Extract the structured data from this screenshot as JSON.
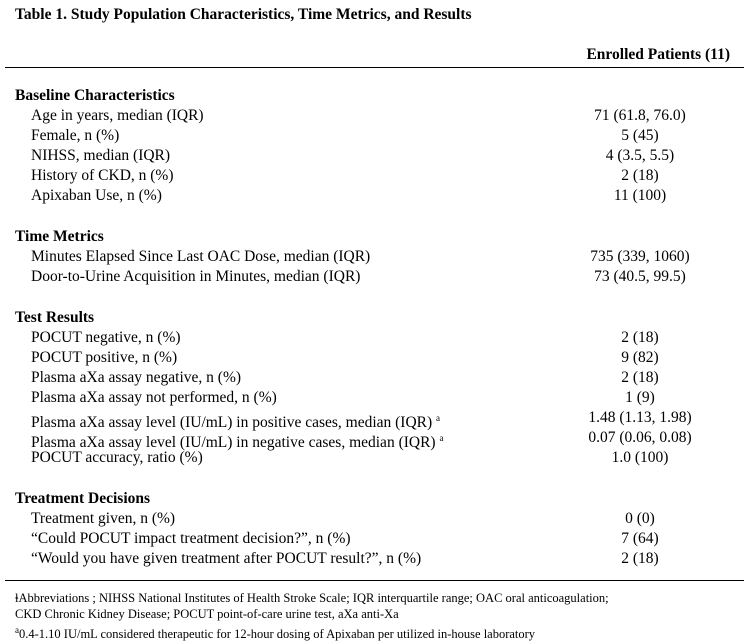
{
  "title": "Table 1. Study Population Characteristics, Time Metrics, and Results",
  "column_header": "Enrolled Patients (11)",
  "sections": [
    {
      "heading": "Baseline Characteristics",
      "rows": [
        {
          "label": "Age in years, median (IQR)",
          "value": "71 (61.8, 76.0)"
        },
        {
          "label": "Female, n (%)",
          "value": "5 (45)"
        },
        {
          "label": "NIHSS, median (IQR)",
          "value": "4 (3.5, 5.5)"
        },
        {
          "label": "History of CKD, n (%)",
          "value": "2 (18)"
        },
        {
          "label": "Apixaban Use, n (%)",
          "value": "11 (100)"
        }
      ]
    },
    {
      "heading": "Time Metrics",
      "rows": [
        {
          "label": "Minutes Elapsed Since Last OAC Dose, median (IQR)",
          "value": "735 (339, 1060)"
        },
        {
          "label": "Door-to-Urine Acquisition in Minutes, median (IQR)",
          "value": "73 (40.5, 99.5)"
        }
      ]
    },
    {
      "heading": "Test Results",
      "rows": [
        {
          "label": "POCUT negative, n (%)",
          "value": "2 (18)"
        },
        {
          "label": "POCUT positive, n (%)",
          "value": "9 (82)"
        },
        {
          "label": "Plasma aXa assay negative, n (%)",
          "value": "2 (18)"
        },
        {
          "label": "Plasma aXa assay not performed, n (%)",
          "value": "1 (9)"
        },
        {
          "label": "Plasma aXa assay level (IU/mL) in positive cases, median (IQR)",
          "note": "a",
          "value": "1.48 (1.13, 1.98)"
        },
        {
          "label": "Plasma aXa assay level (IU/mL) in negative cases, median (IQR)",
          "note": "a",
          "value": "0.07 (0.06, 0.08)"
        },
        {
          "label": "POCUT accuracy, ratio (%)",
          "value": "1.0 (100)"
        }
      ]
    },
    {
      "heading": "Treatment Decisions",
      "rows": [
        {
          "label": "Treatment given, n (%)",
          "value": "0 (0)"
        },
        {
          "label": "“Could POCUT impact treatment decision?”, n (%)",
          "value": "7 (64)"
        },
        {
          "label": "“Would you have given treatment after POCUT result?”, n (%)",
          "value": "2 (18)"
        }
      ]
    }
  ],
  "footnotes": [
    {
      "lines": [
        "ⱡAbbreviations ; NIHSS National Institutes of Health Stroke Scale; IQR interquartile range; OAC oral anticoagulation;",
        "CKD Chronic Kidney Disease; POCUT point-of-care urine test, aXa anti-Xa"
      ]
    },
    {
      "marker": "a",
      "text": "0.4-1.10 IU/mL considered therapeutic for 12-hour dosing of Apixaban per utilized in-house laboratory"
    }
  ]
}
